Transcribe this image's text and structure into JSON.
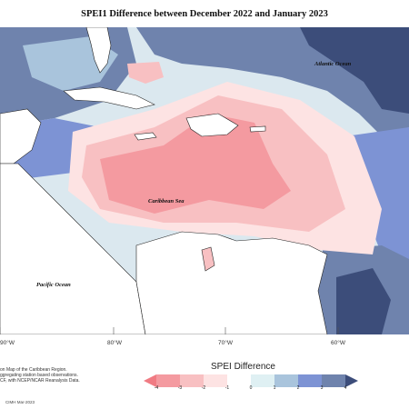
{
  "title": "SPEI1 Difference between December 2022 and January 2023",
  "labels": {
    "atlantic": "Atlantic Ocean",
    "caribbean": "Caribbean Sea",
    "pacific": "Pacific Ocean"
  },
  "longitudes": [
    "90°W",
    "80°W",
    "70°W",
    "60°W"
  ],
  "legend": {
    "title": "SPEI Difference",
    "ticks": [
      "-4",
      "-3",
      "-2",
      "-1",
      "0",
      "1",
      "2",
      "3",
      "4"
    ],
    "colors": [
      "#f07b83",
      "#f49aa0",
      "#f8c0c2",
      "#fde3e3",
      "#dff0f3",
      "#a9c4dc",
      "#7d93d4",
      "#6f83ad",
      "#3c4d7a"
    ]
  },
  "notes": {
    "line1": "on Map of the Caribbean Region.",
    "line2": "ggregating station based observations.",
    "line3": "CF, with NCEP/NCAR Reanalysis Data.",
    "credit": "CIMH Mar-2023"
  }
}
